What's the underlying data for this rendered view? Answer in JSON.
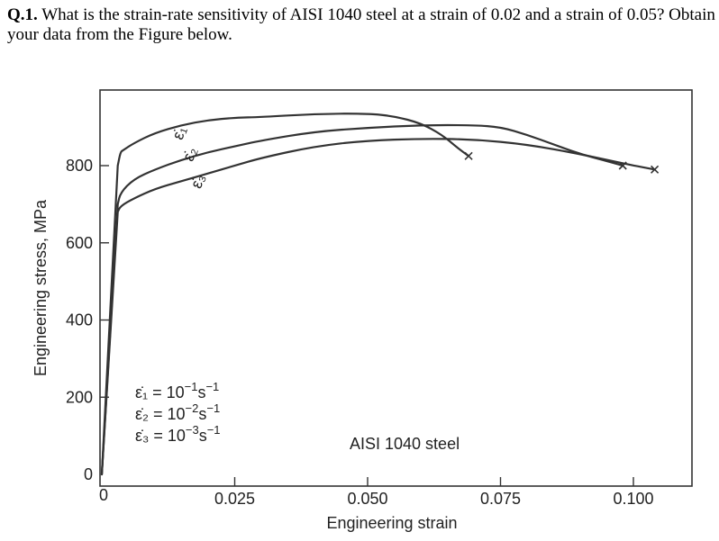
{
  "question": {
    "number": "Q.1.",
    "text": " What is the strain-rate sensitivity of AISI 1040 steel at a strain of 0.02 and a strain of 0.05? Obtain your data from the Figure below."
  },
  "chart_data": {
    "type": "line",
    "xlabel": "Engineering strain",
    "ylabel": "Engineering stress, MPa",
    "xlim": [
      0,
      0.11
    ],
    "ylim": [
      0,
      950
    ],
    "xticks": [
      {
        "value": 0,
        "label": "0"
      },
      {
        "value": 0.025,
        "label": "0.025"
      },
      {
        "value": 0.05,
        "label": "0.050"
      },
      {
        "value": 0.075,
        "label": "0.075"
      },
      {
        "value": 0.1,
        "label": "0.100"
      }
    ],
    "yticks": [
      {
        "value": 0,
        "label": "0"
      },
      {
        "value": 200,
        "label": "200"
      },
      {
        "value": 400,
        "label": "400"
      },
      {
        "value": 600,
        "label": "600"
      },
      {
        "value": 800,
        "label": "800"
      }
    ],
    "annotation": "AISI 1040 steel",
    "legend": {
      "items": [
        {
          "symbol": "ε̇₁",
          "eq": " = 10",
          "exp": "−1",
          "unit": "s",
          "uexp": "−1"
        },
        {
          "symbol": "ε̇₂",
          "eq": " = 10",
          "exp": "−2",
          "unit": "s",
          "uexp": "−1"
        },
        {
          "symbol": "ε̇₃",
          "eq": " = 10",
          "exp": "−3",
          "unit": "s",
          "uexp": "−1"
        }
      ]
    },
    "series": [
      {
        "name": "ε̇₁",
        "x": [
          0,
          0.003,
          0.0035,
          0.004,
          0.006,
          0.01,
          0.015,
          0.02,
          0.025,
          0.03,
          0.04,
          0.05,
          0.055,
          0.06,
          0.064,
          0.067,
          0.069
        ],
        "y": [
          0,
          800,
          835,
          840,
          858,
          885,
          905,
          918,
          924,
          926,
          934,
          935,
          928,
          910,
          880,
          845,
          825
        ]
      },
      {
        "name": "ε̇₂",
        "x": [
          0,
          0.003,
          0.0035,
          0.006,
          0.01,
          0.015,
          0.02,
          0.025,
          0.03,
          0.04,
          0.05,
          0.06,
          0.07,
          0.075,
          0.08,
          0.085,
          0.09,
          0.095,
          0.098
        ],
        "y": [
          0,
          700,
          730,
          765,
          790,
          815,
          835,
          850,
          865,
          888,
          898,
          905,
          905,
          900,
          880,
          855,
          830,
          812,
          800
        ]
      },
      {
        "name": "ε̇₃",
        "x": [
          0,
          0.003,
          0.0035,
          0.006,
          0.01,
          0.015,
          0.02,
          0.025,
          0.03,
          0.04,
          0.05,
          0.06,
          0.07,
          0.08,
          0.09,
          0.1,
          0.104
        ],
        "y": [
          0,
          680,
          695,
          715,
          740,
          760,
          780,
          800,
          820,
          850,
          865,
          870,
          868,
          855,
          830,
          800,
          790
        ]
      }
    ],
    "curve_labels": [
      {
        "series": "ε̇₁",
        "x": 0.0155,
        "y": 880
      },
      {
        "series": "ε̇₂",
        "x": 0.0175,
        "y": 825
      },
      {
        "series": "ε̇₃",
        "x": 0.019,
        "y": 755
      }
    ],
    "fracture_points": [
      {
        "series": "ε̇₁",
        "x": 0.069,
        "y": 825
      },
      {
        "series": "ε̇₂",
        "x": 0.098,
        "y": 800
      },
      {
        "series": "ε̇₃",
        "x": 0.104,
        "y": 790
      }
    ]
  }
}
